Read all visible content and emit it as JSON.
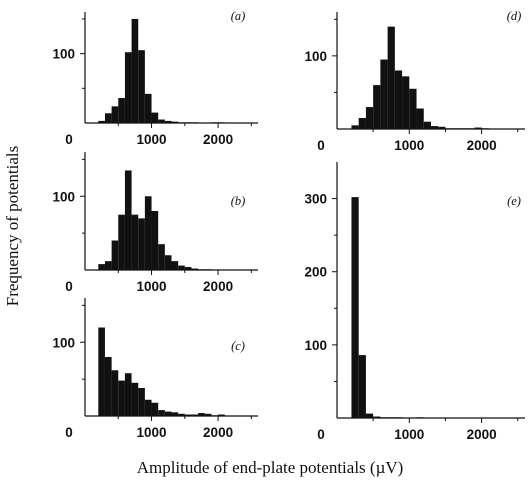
{
  "figure": {
    "ylabel": "Frequency of potentials",
    "xlabel": "Amplitude of end-plate potentials (µV)"
  },
  "chart_data": [
    {
      "type": "bar",
      "panel_label": "(a)",
      "bin_width": 100,
      "bin_starts": [
        200,
        300,
        400,
        500,
        600,
        700,
        800,
        900,
        1000,
        1100,
        1200,
        1300,
        1400,
        1500,
        1600,
        1700,
        1800,
        1900,
        2000,
        2100
      ],
      "values": [
        3,
        14,
        24,
        36,
        102,
        150,
        105,
        42,
        15,
        5,
        3,
        2,
        1,
        1,
        1,
        0,
        0,
        1,
        1,
        0
      ],
      "xticks": [
        0,
        1000,
        2000
      ],
      "yticks": [
        100
      ],
      "xlim": [
        0,
        2600
      ],
      "ylim": [
        0,
        160
      ],
      "color": "#111111"
    },
    {
      "type": "bar",
      "panel_label": "(b)",
      "bin_width": 100,
      "bin_starts": [
        200,
        300,
        400,
        500,
        600,
        700,
        800,
        900,
        1000,
        1100,
        1200,
        1300,
        1400,
        1500,
        1600,
        1700,
        1800
      ],
      "values": [
        8,
        12,
        40,
        75,
        135,
        75,
        70,
        100,
        80,
        35,
        20,
        12,
        6,
        4,
        2,
        1,
        1
      ],
      "xticks": [
        0,
        1000,
        2000
      ],
      "yticks": [
        100
      ],
      "xlim": [
        0,
        2600
      ],
      "ylim": [
        0,
        160
      ],
      "color": "#111111"
    },
    {
      "type": "bar",
      "panel_label": "(c)",
      "bin_width": 100,
      "bin_starts": [
        200,
        300,
        400,
        500,
        600,
        700,
        800,
        900,
        1000,
        1100,
        1200,
        1300,
        1400,
        1500,
        1600,
        1700,
        1800,
        1900,
        2000
      ],
      "values": [
        120,
        80,
        62,
        48,
        58,
        45,
        38,
        22,
        18,
        8,
        6,
        5,
        3,
        2,
        2,
        4,
        3,
        1,
        2
      ],
      "xticks": [
        0,
        1000,
        2000
      ],
      "yticks": [
        100
      ],
      "xlim": [
        0,
        2600
      ],
      "ylim": [
        0,
        160
      ],
      "color": "#111111"
    },
    {
      "type": "bar",
      "panel_label": "(d)",
      "bin_width": 100,
      "bin_starts": [
        200,
        300,
        400,
        500,
        600,
        700,
        800,
        900,
        1000,
        1100,
        1200,
        1300,
        1400,
        1500,
        1600,
        1700,
        1800,
        1900,
        2000
      ],
      "values": [
        5,
        15,
        30,
        60,
        95,
        140,
        80,
        72,
        55,
        28,
        10,
        4,
        3,
        1,
        1,
        1,
        1,
        2,
        1
      ],
      "xticks": [
        0,
        1000,
        2000
      ],
      "yticks": [
        100
      ],
      "xlim": [
        0,
        2600
      ],
      "ylim": [
        0,
        160
      ],
      "color": "#111111"
    },
    {
      "type": "bar",
      "panel_label": "(e)",
      "bin_width": 100,
      "bin_starts": [
        200,
        300,
        400,
        500,
        600,
        700,
        800,
        900,
        1000,
        1100,
        1200
      ],
      "values": [
        302,
        86,
        6,
        2,
        1,
        1,
        1,
        0,
        0,
        1,
        0
      ],
      "xticks": [
        0,
        1000,
        2000
      ],
      "yticks": [
        100,
        200,
        300
      ],
      "xlim": [
        0,
        2600
      ],
      "ylim": [
        0,
        350
      ],
      "color": "#111111"
    }
  ]
}
